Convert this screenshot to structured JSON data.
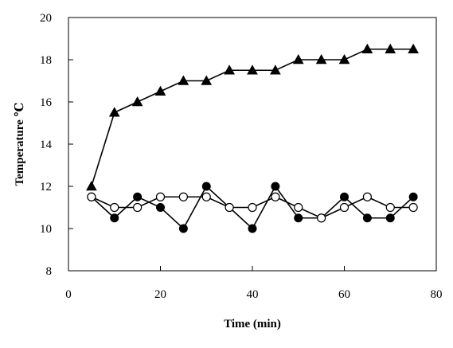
{
  "chart_data": {
    "type": "line",
    "title": "",
    "xlabel": "Time (min)",
    "ylabel": "Temperature ℃",
    "xlim": [
      0,
      80
    ],
    "ylim": [
      8,
      20
    ],
    "xticks": [
      0,
      20,
      40,
      60,
      80
    ],
    "yticks": [
      8,
      10,
      12,
      14,
      16,
      18,
      20
    ],
    "grid": false,
    "legend": "none",
    "x": [
      5,
      10,
      15,
      20,
      25,
      30,
      35,
      40,
      45,
      50,
      55,
      60,
      65,
      70,
      75
    ],
    "series": [
      {
        "marker": "triangle-filled",
        "color": "#000000",
        "values": [
          12,
          15.5,
          16,
          16.5,
          17,
          17,
          17.5,
          17.5,
          17.5,
          18,
          18,
          18,
          18.5,
          18.5,
          18.5
        ]
      },
      {
        "marker": "circle-filled",
        "color": "#000000",
        "values": [
          11.5,
          10.5,
          11.5,
          11,
          10,
          12,
          11,
          10,
          12,
          10.5,
          10.5,
          11.5,
          10.5,
          10.5,
          11.5
        ]
      },
      {
        "marker": "circle-open",
        "color": "#000000",
        "values": [
          11.5,
          11,
          11,
          11.5,
          11.5,
          11.5,
          11,
          11,
          11.5,
          11,
          10.5,
          11,
          11.5,
          11,
          11
        ]
      }
    ]
  }
}
